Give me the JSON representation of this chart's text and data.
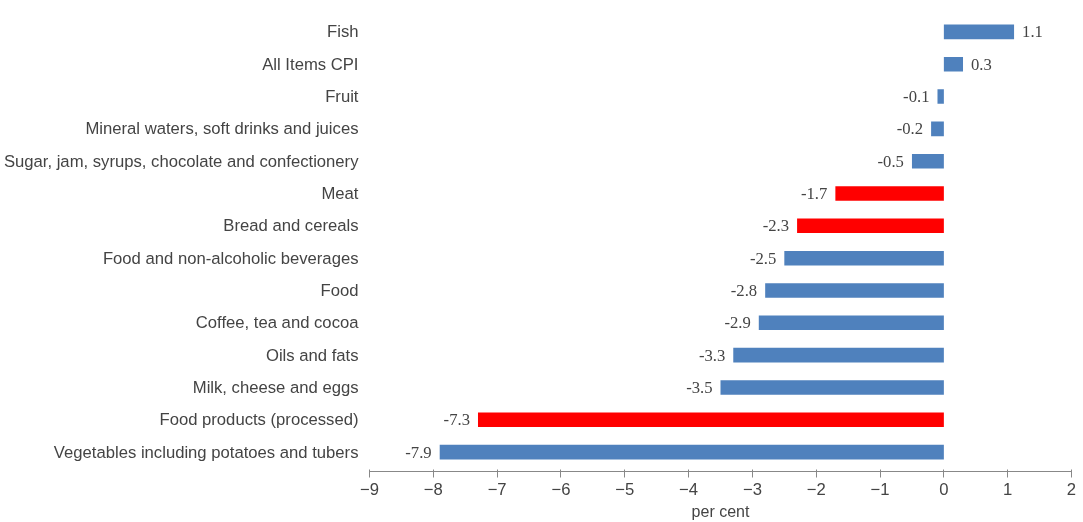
{
  "chart_data": {
    "type": "bar",
    "orientation": "horizontal",
    "xlabel": "per cent",
    "categories": [
      "Fish",
      "All Items CPI",
      "Fruit",
      "Mineral waters, soft drinks and juices",
      "Sugar, jam, syrups, chocolate and confectionery",
      "Meat",
      "Bread and cereals",
      "Food and non-alcoholic beverages",
      "Food",
      "Coffee, tea and cocoa",
      "Oils and fats",
      "Milk, cheese and eggs",
      "Food products (processed)",
      "Vegetables including potatoes and tubers"
    ],
    "values": [
      1.1,
      0.3,
      -0.1,
      -0.2,
      -0.5,
      -1.7,
      -2.3,
      -2.5,
      -2.8,
      -2.9,
      -3.3,
      -3.5,
      -7.3,
      -7.9
    ],
    "colors": [
      "#4f81bd",
      "#4f81bd",
      "#4f81bd",
      "#4f81bd",
      "#4f81bd",
      "#ff0000",
      "#ff0000",
      "#4f81bd",
      "#4f81bd",
      "#4f81bd",
      "#4f81bd",
      "#4f81bd",
      "#ff0000",
      "#4f81bd"
    ],
    "xlim": [
      -9,
      2
    ],
    "xticks": [
      -9,
      -8,
      -7,
      -6,
      -5,
      -4,
      -3,
      -2,
      -1,
      0,
      1,
      2
    ],
    "grid": false,
    "data_labels": true
  }
}
